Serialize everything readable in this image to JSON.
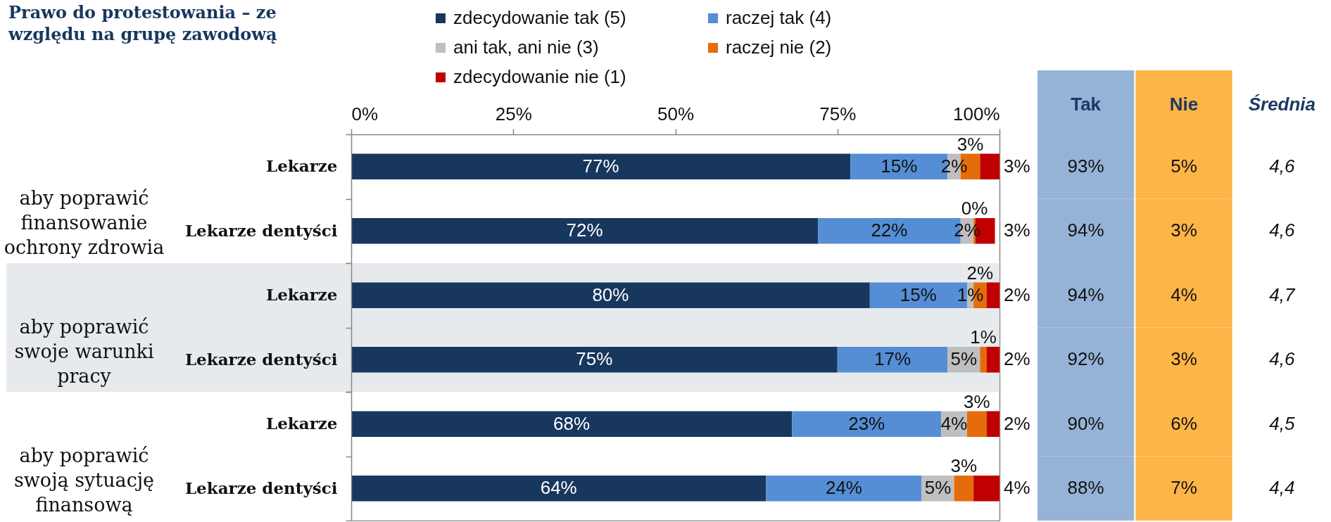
{
  "chart_data": [
    {
      "type": "bar",
      "orientation": "horizontal",
      "stacked": true,
      "title": "Prawo do protestowania – ze względu na grupę zawodową",
      "ylabel": "aby poprawić finansowanie ochrony zdrowia",
      "categories": [
        "Lekarze",
        "Lekarze dentyści"
      ],
      "series": [
        {
          "name": "zdecydowanie tak (5)",
          "color": "#17375e",
          "values": [
            77,
            72
          ],
          "value_labels": [
            "77%",
            "72%"
          ]
        },
        {
          "name": "raczej tak (4)",
          "color": "#558ed5",
          "values": [
            15,
            22
          ],
          "value_labels": [
            "15%",
            "22%"
          ]
        },
        {
          "name": "ani tak, ani nie (3)",
          "color": "#bfbfbf",
          "values": [
            2,
            2
          ],
          "value_labels": [
            "2%",
            "2%"
          ]
        },
        {
          "name": "raczej nie (2)",
          "color": "#e46c0a",
          "values": [
            3,
            0.3
          ],
          "value_labels": [
            "3%",
            "0%"
          ]
        },
        {
          "name": "zdecydowanie nie (1)",
          "color": "#c00000",
          "values": [
            3,
            3
          ],
          "value_labels": [
            "3%",
            "3%"
          ]
        }
      ],
      "xlim": [
        0,
        100
      ],
      "xticks": [
        {
          "value": 0,
          "label": "0%"
        },
        {
          "value": 25,
          "label": "25%"
        },
        {
          "value": 50,
          "label": "50%"
        },
        {
          "value": 75,
          "label": "75%"
        },
        {
          "value": 100,
          "label": "100%"
        }
      ],
      "legend": "top"
    },
    {
      "type": "bar",
      "orientation": "horizontal",
      "stacked": true,
      "ylabel": "aby poprawić swoje warunki pracy",
      "categories": [
        "Lekarze",
        "Lekarze dentyści"
      ],
      "series": [
        {
          "name": "zdecydowanie tak (5)",
          "color": "#17375e",
          "values": [
            80,
            75
          ],
          "value_labels": [
            "80%",
            "75%"
          ]
        },
        {
          "name": "raczej tak (4)",
          "color": "#558ed5",
          "values": [
            15,
            17
          ],
          "value_labels": [
            "15%",
            "17%"
          ]
        },
        {
          "name": "ani tak, ani nie (3)",
          "color": "#bfbfbf",
          "values": [
            1,
            5
          ],
          "value_labels": [
            "1%",
            "5%"
          ]
        },
        {
          "name": "raczej nie (2)",
          "color": "#e46c0a",
          "values": [
            2,
            1
          ],
          "value_labels": [
            "2%",
            "1%"
          ]
        },
        {
          "name": "zdecydowanie nie (1)",
          "color": "#c00000",
          "values": [
            2,
            2
          ],
          "value_labels": [
            "2%",
            "2%"
          ]
        }
      ],
      "xlim": [
        0,
        100
      ],
      "tick_labels": "y",
      "bands": [
        {
          "axis": "y",
          "from": "Lekarze",
          "to": "Lekarze dentyści",
          "color": "#e7eaed"
        }
      ]
    },
    {
      "type": "bar",
      "orientation": "horizontal",
      "stacked": true,
      "ylabel": "aby poprawić swoją sytuację finansową",
      "categories": [
        "Lekarze",
        "Lekarze dentyści"
      ],
      "series": [
        {
          "name": "zdecydowanie tak (5)",
          "color": "#17375e",
          "values": [
            68,
            64
          ],
          "value_labels": [
            "68%",
            "64%"
          ]
        },
        {
          "name": "raczej tak (4)",
          "color": "#558ed5",
          "values": [
            23,
            24
          ],
          "value_labels": [
            "23%",
            "24%"
          ]
        },
        {
          "name": "ani tak, ani nie (3)",
          "color": "#bfbfbf",
          "values": [
            4,
            5
          ],
          "value_labels": [
            "4%",
            "5%"
          ]
        },
        {
          "name": "raczej nie (2)",
          "color": "#e46c0a",
          "values": [
            3,
            3
          ],
          "value_labels": [
            "3%",
            "3%"
          ]
        },
        {
          "name": "zdecydowanie nie (1)",
          "color": "#c00000",
          "values": [
            2,
            4
          ],
          "value_labels": [
            "2%",
            "4%"
          ]
        }
      ],
      "xlim": [
        0,
        100
      ],
      "tick_labels": "y"
    },
    {
      "type": "other",
      "categories": [
        "Tak",
        "Nie",
        "Średnia"
      ],
      "series": [
        {
          "colors": [
            "#95b3d7",
            "#fdb547",
            null
          ],
          "values": [
            93,
            5,
            4.6
          ],
          "value_labels": [
            "93%",
            "5%",
            "4,6"
          ]
        },
        {
          "colors": [
            "#95b3d7",
            "#fdb547",
            null
          ],
          "values": [
            94,
            3,
            4.6
          ],
          "value_labels": [
            "94%",
            "3%",
            "4,6"
          ]
        },
        {
          "colors": [
            "#95b3d7",
            "#fdb547",
            null
          ],
          "values": [
            94,
            4,
            4.7
          ],
          "value_labels": [
            "94%",
            "4%",
            "4,7"
          ]
        },
        {
          "colors": [
            "#95b3d7",
            "#fdb547",
            null
          ],
          "values": [
            92,
            3,
            4.6
          ],
          "value_labels": [
            "92%",
            "3%",
            "4,6"
          ]
        },
        {
          "colors": [
            "#95b3d7",
            "#fdb547",
            null
          ],
          "values": [
            90,
            6,
            4.5
          ],
          "value_labels": [
            "90%",
            "6%",
            "4,5"
          ]
        },
        {
          "colors": [
            "#95b3d7",
            "#fdb547",
            null
          ],
          "values": [
            88,
            7,
            4.4
          ],
          "value_labels": [
            "88%",
            "7%",
            "4,4"
          ]
        }
      ]
    }
  ]
}
